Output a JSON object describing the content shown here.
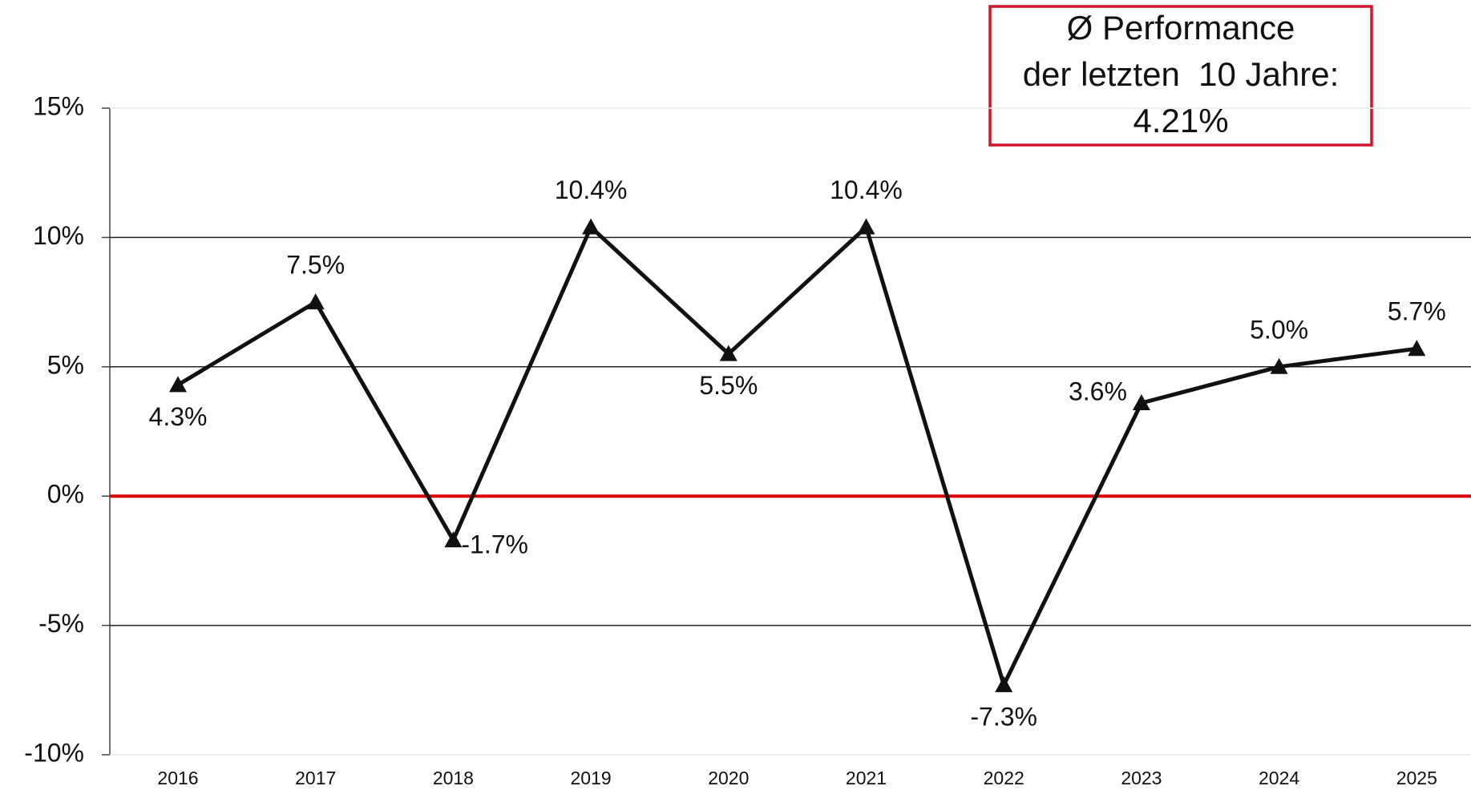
{
  "chart_data": {
    "type": "line",
    "categories": [
      "2016",
      "2017",
      "2018",
      "2019",
      "2020",
      "2021",
      "2022",
      "2023",
      "2024",
      "2025"
    ],
    "series": [
      {
        "color": "#111111",
        "values": [
          4.3,
          7.5,
          -1.7,
          10.4,
          5.5,
          10.4,
          -7.3,
          3.6,
          5.0,
          5.7
        ],
        "value_labels": [
          "4.3%",
          "7.5%",
          "-1.7%",
          "10.4%",
          "5.5%",
          "10.4%",
          "-7.3%",
          "3.6%",
          "5.0%",
          "5.7%"
        ]
      }
    ],
    "ylim": [
      -10,
      15
    ],
    "yticks": [
      {
        "value": -10,
        "label": "-10%"
      },
      {
        "value": -5,
        "label": "-5%"
      },
      {
        "value": 0,
        "label": "0%"
      },
      {
        "value": 5,
        "label": "5%"
      },
      {
        "value": 10,
        "label": "10%"
      },
      {
        "value": 15,
        "label": "15%"
      }
    ],
    "grid": true,
    "grid_color": "#222222",
    "zero_line_color": "#e00000",
    "marker": "triangle",
    "annotation": {
      "lines": [
        "Ø Performance",
        "der letzten  10 Jahre:",
        "4.21%"
      ],
      "border_color": "#d0142c"
    }
  }
}
